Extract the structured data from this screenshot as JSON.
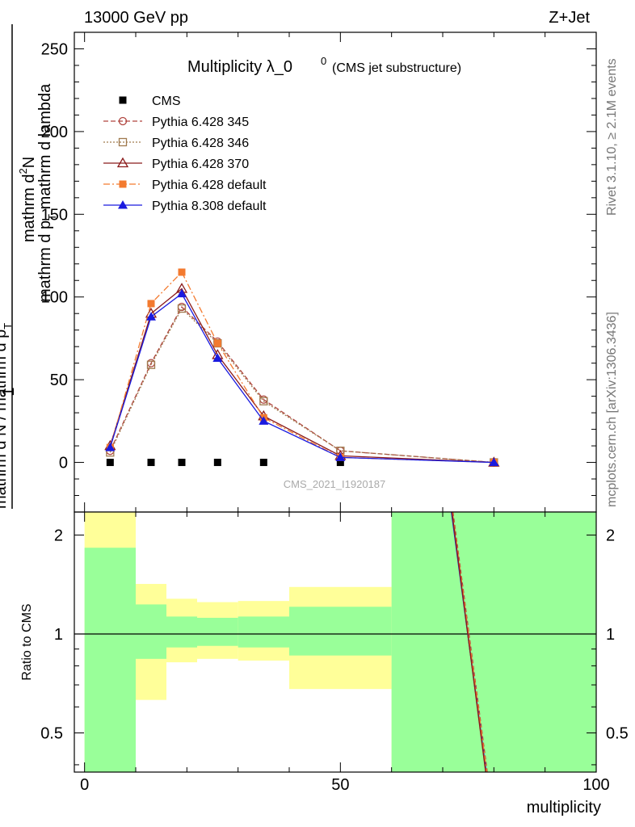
{
  "header": {
    "left": "13000 GeV pp",
    "right": "Z+Jet"
  },
  "side_text": {
    "rivet": "Rivet 3.1.10, ≥ 2.1M events",
    "mcplots": "mcplots.cern.ch [arXiv:1306.3436]"
  },
  "chart_data": [
    {
      "type": "line",
      "title_main": "Multiplicity λ_0",
      "title_sup": "0",
      "title_small": "(CMS jet substructure)",
      "watermark": "CMS_2021_I1920187",
      "ylabel_top": "1",
      "ylabel_line1": "mathrm d",
      "ylabel_line1_sup": "2",
      "ylabel_line1_end": "N",
      "ylabel_line2": "mathrm d p",
      "ylabel_line2_sub": "T",
      "ylabel_line2_end": " mathrm d lambda",
      "ylabel_denominator": "mathrm d N / mathrm d p",
      "ylabel_denominator_sub": "T",
      "xlim": [
        -2,
        100
      ],
      "ylim": [
        -30,
        260
      ],
      "yticks": [
        "0",
        "50",
        "100",
        "150",
        "200",
        "250"
      ],
      "legend_position": "top-left",
      "series": [
        {
          "name": "CMS",
          "color": "#000000",
          "marker": "square",
          "dash": "none",
          "x": [
            5,
            13,
            19,
            26,
            35,
            50
          ],
          "y": [
            0,
            0,
            0,
            0,
            0,
            0
          ]
        },
        {
          "name": "Pythia 6.428 345",
          "color": "#b0453f",
          "marker": "circle-open",
          "dash": "6,3",
          "x": [
            5,
            13,
            19,
            26,
            35,
            50,
            80
          ],
          "y": [
            7,
            60,
            94,
            73,
            38,
            7,
            0
          ]
        },
        {
          "name": "Pythia 6.428 346",
          "color": "#a07a4e",
          "marker": "square-open",
          "dash": "2,2",
          "x": [
            5,
            13,
            19,
            26,
            35,
            50,
            80
          ],
          "y": [
            6,
            59,
            93,
            72,
            37,
            7,
            0
          ]
        },
        {
          "name": "Pythia 6.428 370",
          "color": "#8b1a1a",
          "marker": "triangle-open",
          "dash": "none",
          "x": [
            5,
            13,
            19,
            26,
            35,
            50,
            80
          ],
          "y": [
            10,
            90,
            105,
            65,
            28,
            4,
            0
          ]
        },
        {
          "name": "Pythia 6.428 default",
          "color": "#f37a2f",
          "marker": "square",
          "dash": "8,3,2,3",
          "x": [
            5,
            13,
            19,
            26,
            35,
            50,
            80
          ],
          "y": [
            9,
            96,
            115,
            72,
            27,
            3,
            0
          ]
        },
        {
          "name": "Pythia 8.308 default",
          "color": "#1a1adf",
          "marker": "triangle",
          "dash": "none",
          "x": [
            5,
            13,
            19,
            26,
            35,
            50,
            80
          ],
          "y": [
            9,
            88,
            102,
            63,
            25,
            3,
            0
          ]
        }
      ]
    },
    {
      "type": "line",
      "ylabel": "Ratio to CMS",
      "xlabel": "multiplicity",
      "xlim": [
        -2,
        100
      ],
      "ylim": [
        0.38,
        2.35
      ],
      "log_y": true,
      "yticks": [
        "0.5",
        "1",
        "2"
      ],
      "xticks": [
        "0",
        "50",
        "100"
      ],
      "bands": [
        {
          "x0": 0,
          "x1": 10,
          "yellow": [
            0.0,
            2.5
          ],
          "green": [
            0.0,
            1.83
          ]
        },
        {
          "x0": 10,
          "x1": 16,
          "yellow": [
            0.63,
            1.42
          ],
          "green": [
            0.84,
            1.23
          ]
        },
        {
          "x0": 16,
          "x1": 22,
          "yellow": [
            0.82,
            1.28
          ],
          "green": [
            0.91,
            1.13
          ]
        },
        {
          "x0": 22,
          "x1": 30,
          "yellow": [
            0.84,
            1.25
          ],
          "green": [
            0.92,
            1.12
          ]
        },
        {
          "x0": 30,
          "x1": 40,
          "yellow": [
            0.83,
            1.26
          ],
          "green": [
            0.91,
            1.13
          ]
        },
        {
          "x0": 40,
          "x1": 60,
          "yellow": [
            0.68,
            1.39
          ],
          "green": [
            0.86,
            1.21
          ]
        },
        {
          "x0": 60,
          "x1": 100,
          "yellow": [
            0.0,
            2.5
          ],
          "green": [
            0.0,
            2.5
          ]
        }
      ],
      "ratio_lines": [
        {
          "color": "#1a1adf",
          "dash": "none",
          "x": [
            71.7,
            78.5
          ],
          "y": [
            2.35,
            0.38
          ]
        },
        {
          "color": "#b0453f",
          "dash": "5,3",
          "x": [
            72.0,
            78.7
          ],
          "y": [
            2.35,
            0.38
          ]
        },
        {
          "color": "#f37a2f",
          "dash": "8,3,2,3",
          "x": [
            71.9,
            78.6
          ],
          "y": [
            2.35,
            0.38
          ]
        },
        {
          "color": "#8b1a1a",
          "dash": "none",
          "x": [
            71.8,
            78.4
          ],
          "y": [
            2.35,
            0.38
          ]
        }
      ]
    }
  ]
}
